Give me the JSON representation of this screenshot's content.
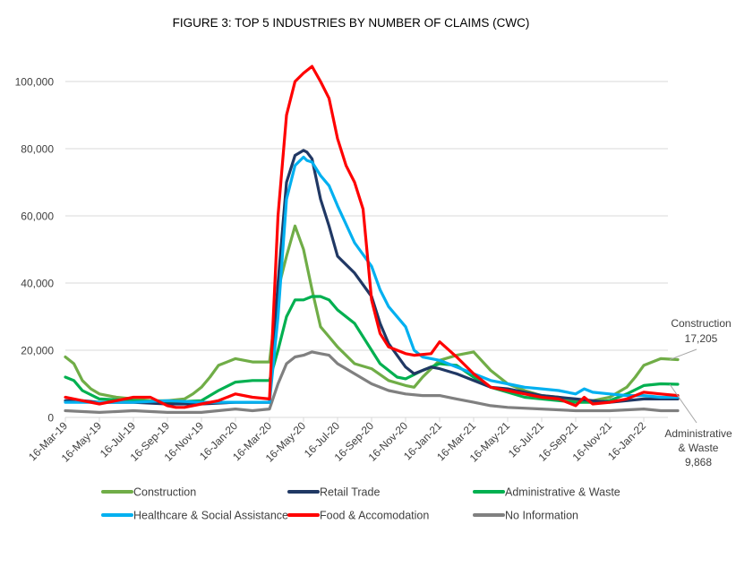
{
  "chart_data": {
    "type": "line",
    "title": "FIGURE 3: TOP 5 INDUSTRIES BY NUMBER OF CLAIMS (CWC)",
    "xlabel": "",
    "ylabel": "",
    "ylim": [
      0,
      100000
    ],
    "yticks": [
      0,
      20000,
      40000,
      60000,
      80000,
      100000
    ],
    "ytick_labels": [
      "0",
      "20,000",
      "40,000",
      "60,000",
      "80,000",
      "100,000"
    ],
    "grid": true,
    "x_unit": "months since 16-Mar-19",
    "xticks": [
      0,
      2,
      4,
      6,
      8,
      10,
      12,
      14,
      16,
      18,
      20,
      22,
      24,
      26,
      28,
      30,
      32,
      34
    ],
    "xtick_labels": [
      "16-Mar-19",
      "16-May-19",
      "16-Jul-19",
      "16-Sep-19",
      "16-Nov-19",
      "16-Jan-20",
      "16-Mar-20",
      "16-May-20",
      "16-Jul-20",
      "16-Sep-20",
      "16-Nov-20",
      "16-Jan-21",
      "16-Mar-21",
      "16-May-21",
      "16-Jul-21",
      "16-Sep-21",
      "16-Nov-21",
      "16-Jan-22"
    ],
    "legend_position": "bottom",
    "series": [
      {
        "name": "Construction",
        "color": "#70AD47",
        "x": [
          0,
          0.5,
          1,
          1.5,
          2,
          3,
          4,
          5,
          6,
          7,
          7.5,
          8,
          8.5,
          9,
          10,
          11,
          12,
          12.5,
          13,
          13.5,
          14,
          14.5,
          15,
          15.5,
          16,
          17,
          18,
          19,
          20,
          20.5,
          21,
          22,
          23,
          24,
          25,
          26,
          27,
          28,
          29,
          30,
          31,
          32,
          33,
          33.5,
          34,
          35,
          36
        ],
        "y": [
          18000,
          16000,
          11000,
          8500,
          7000,
          6000,
          5500,
          5000,
          5000,
          5500,
          7000,
          9000,
          12000,
          15500,
          17500,
          16500,
          16500,
          38000,
          48000,
          57000,
          50000,
          38000,
          27000,
          24000,
          21000,
          16000,
          14500,
          11000,
          9500,
          9000,
          12000,
          17000,
          18500,
          19500,
          14000,
          10000,
          8000,
          6500,
          6000,
          5000,
          5000,
          6000,
          9000,
          12000,
          15500,
          17500,
          17205
        ]
      },
      {
        "name": "Retail Trade",
        "color": "#203864",
        "x": [
          0,
          1,
          2,
          4,
          6,
          8,
          10,
          11,
          12,
          12.5,
          13,
          13.5,
          14,
          14.2,
          14.5,
          15,
          15.5,
          16,
          17,
          18,
          18.5,
          19,
          20,
          20.5,
          21.5,
          22,
          23,
          24,
          25,
          26,
          27,
          28,
          29,
          30,
          31,
          32,
          33,
          34,
          35,
          36
        ],
        "y": [
          5000,
          5000,
          4500,
          4500,
          4000,
          4000,
          4500,
          4500,
          4500,
          40000,
          70000,
          78000,
          79500,
          79000,
          77000,
          65000,
          57000,
          48000,
          43000,
          36000,
          28000,
          22000,
          15000,
          13000,
          15000,
          14500,
          13000,
          11000,
          9000,
          8500,
          7500,
          6500,
          6000,
          5500,
          5000,
          4500,
          5000,
          5500,
          5500,
          5500
        ]
      },
      {
        "name": "Administrative & Waste",
        "color": "#00B050",
        "x": [
          0,
          0.5,
          1,
          2,
          4,
          6,
          8,
          9,
          10,
          11,
          12,
          12.5,
          13,
          13.5,
          14,
          14.5,
          15,
          15.5,
          16,
          17,
          18,
          18.5,
          19.5,
          20,
          21,
          22,
          23,
          24,
          25,
          26,
          27,
          28,
          29,
          30,
          31,
          32,
          33,
          34,
          35,
          36
        ],
        "y": [
          12000,
          11000,
          8000,
          5500,
          5000,
          4500,
          5000,
          8000,
          10500,
          11000,
          11000,
          20000,
          30000,
          35000,
          35000,
          36000,
          36000,
          35000,
          32000,
          28000,
          20000,
          16000,
          12000,
          11500,
          14000,
          16000,
          15500,
          12000,
          9000,
          7500,
          6000,
          5500,
          5000,
          4500,
          4500,
          5000,
          7000,
          9500,
          10000,
          9868
        ]
      },
      {
        "name": "Healthcare & Social Assistance",
        "color": "#00B0F0",
        "x": [
          0,
          2,
          4,
          6,
          8,
          10,
          11,
          12,
          12.5,
          13,
          13.5,
          14,
          14.2,
          14.5,
          15,
          15.5,
          16,
          17,
          18,
          18.5,
          19,
          20,
          20.5,
          21,
          22,
          23,
          24,
          25,
          26,
          27,
          28,
          29,
          30,
          30.5,
          31,
          32,
          33,
          34,
          35,
          36
        ],
        "y": [
          4500,
          4500,
          4500,
          5000,
          4500,
          4500,
          4500,
          4500,
          30000,
          65000,
          75000,
          77500,
          76500,
          76000,
          72000,
          69000,
          63000,
          52000,
          45000,
          38000,
          33000,
          27000,
          20000,
          18000,
          17000,
          15000,
          13000,
          11000,
          10000,
          9000,
          8500,
          8000,
          7000,
          8500,
          7500,
          7000,
          6500,
          6500,
          6000,
          6000
        ]
      },
      {
        "name": "Food & Accomodation",
        "color": "#FF0000",
        "x": [
          0,
          1,
          2,
          3,
          4,
          5,
          6,
          6.5,
          7,
          8,
          9,
          10,
          11,
          12,
          12.5,
          13,
          13.5,
          14,
          14.5,
          15,
          15.5,
          16,
          16.5,
          17,
          17.5,
          18,
          18.5,
          19,
          20,
          20.5,
          21.5,
          22,
          23,
          24,
          25,
          26,
          27,
          28,
          29,
          30,
          30.5,
          31,
          32,
          33,
          34,
          35,
          36
        ],
        "y": [
          6000,
          5000,
          4000,
          5000,
          6000,
          6000,
          3500,
          3000,
          3000,
          4000,
          5000,
          7000,
          6000,
          5500,
          60000,
          90000,
          100000,
          102500,
          104500,
          100000,
          95000,
          83000,
          75000,
          70000,
          62000,
          35000,
          25000,
          21000,
          19000,
          18500,
          19000,
          22500,
          18000,
          13000,
          9000,
          8000,
          7000,
          6000,
          5500,
          3500,
          6000,
          4000,
          4500,
          5500,
          7500,
          7000,
          6500
        ]
      },
      {
        "name": "No Information",
        "color": "#808080",
        "x": [
          0,
          2,
          4,
          6,
          8,
          10,
          11,
          12,
          12.5,
          13,
          13.5,
          14,
          14.5,
          15,
          15.5,
          16,
          17,
          18,
          19,
          20,
          21,
          22,
          23,
          24,
          25,
          26,
          28,
          30,
          32,
          34,
          35,
          36
        ],
        "y": [
          2000,
          1500,
          2000,
          1500,
          1500,
          2500,
          2000,
          2500,
          10000,
          16000,
          18000,
          18500,
          19500,
          19000,
          18500,
          16000,
          13000,
          10000,
          8000,
          7000,
          6500,
          6500,
          5500,
          4500,
          3500,
          3000,
          2500,
          2000,
          2000,
          2500,
          2000,
          2000
        ]
      }
    ],
    "annotations": [
      {
        "series": "Construction",
        "lines": [
          "Construction",
          "17,205"
        ]
      },
      {
        "series": "Administrative & Waste",
        "lines": [
          "Administrative",
          "& Waste",
          "9,868"
        ]
      }
    ]
  }
}
